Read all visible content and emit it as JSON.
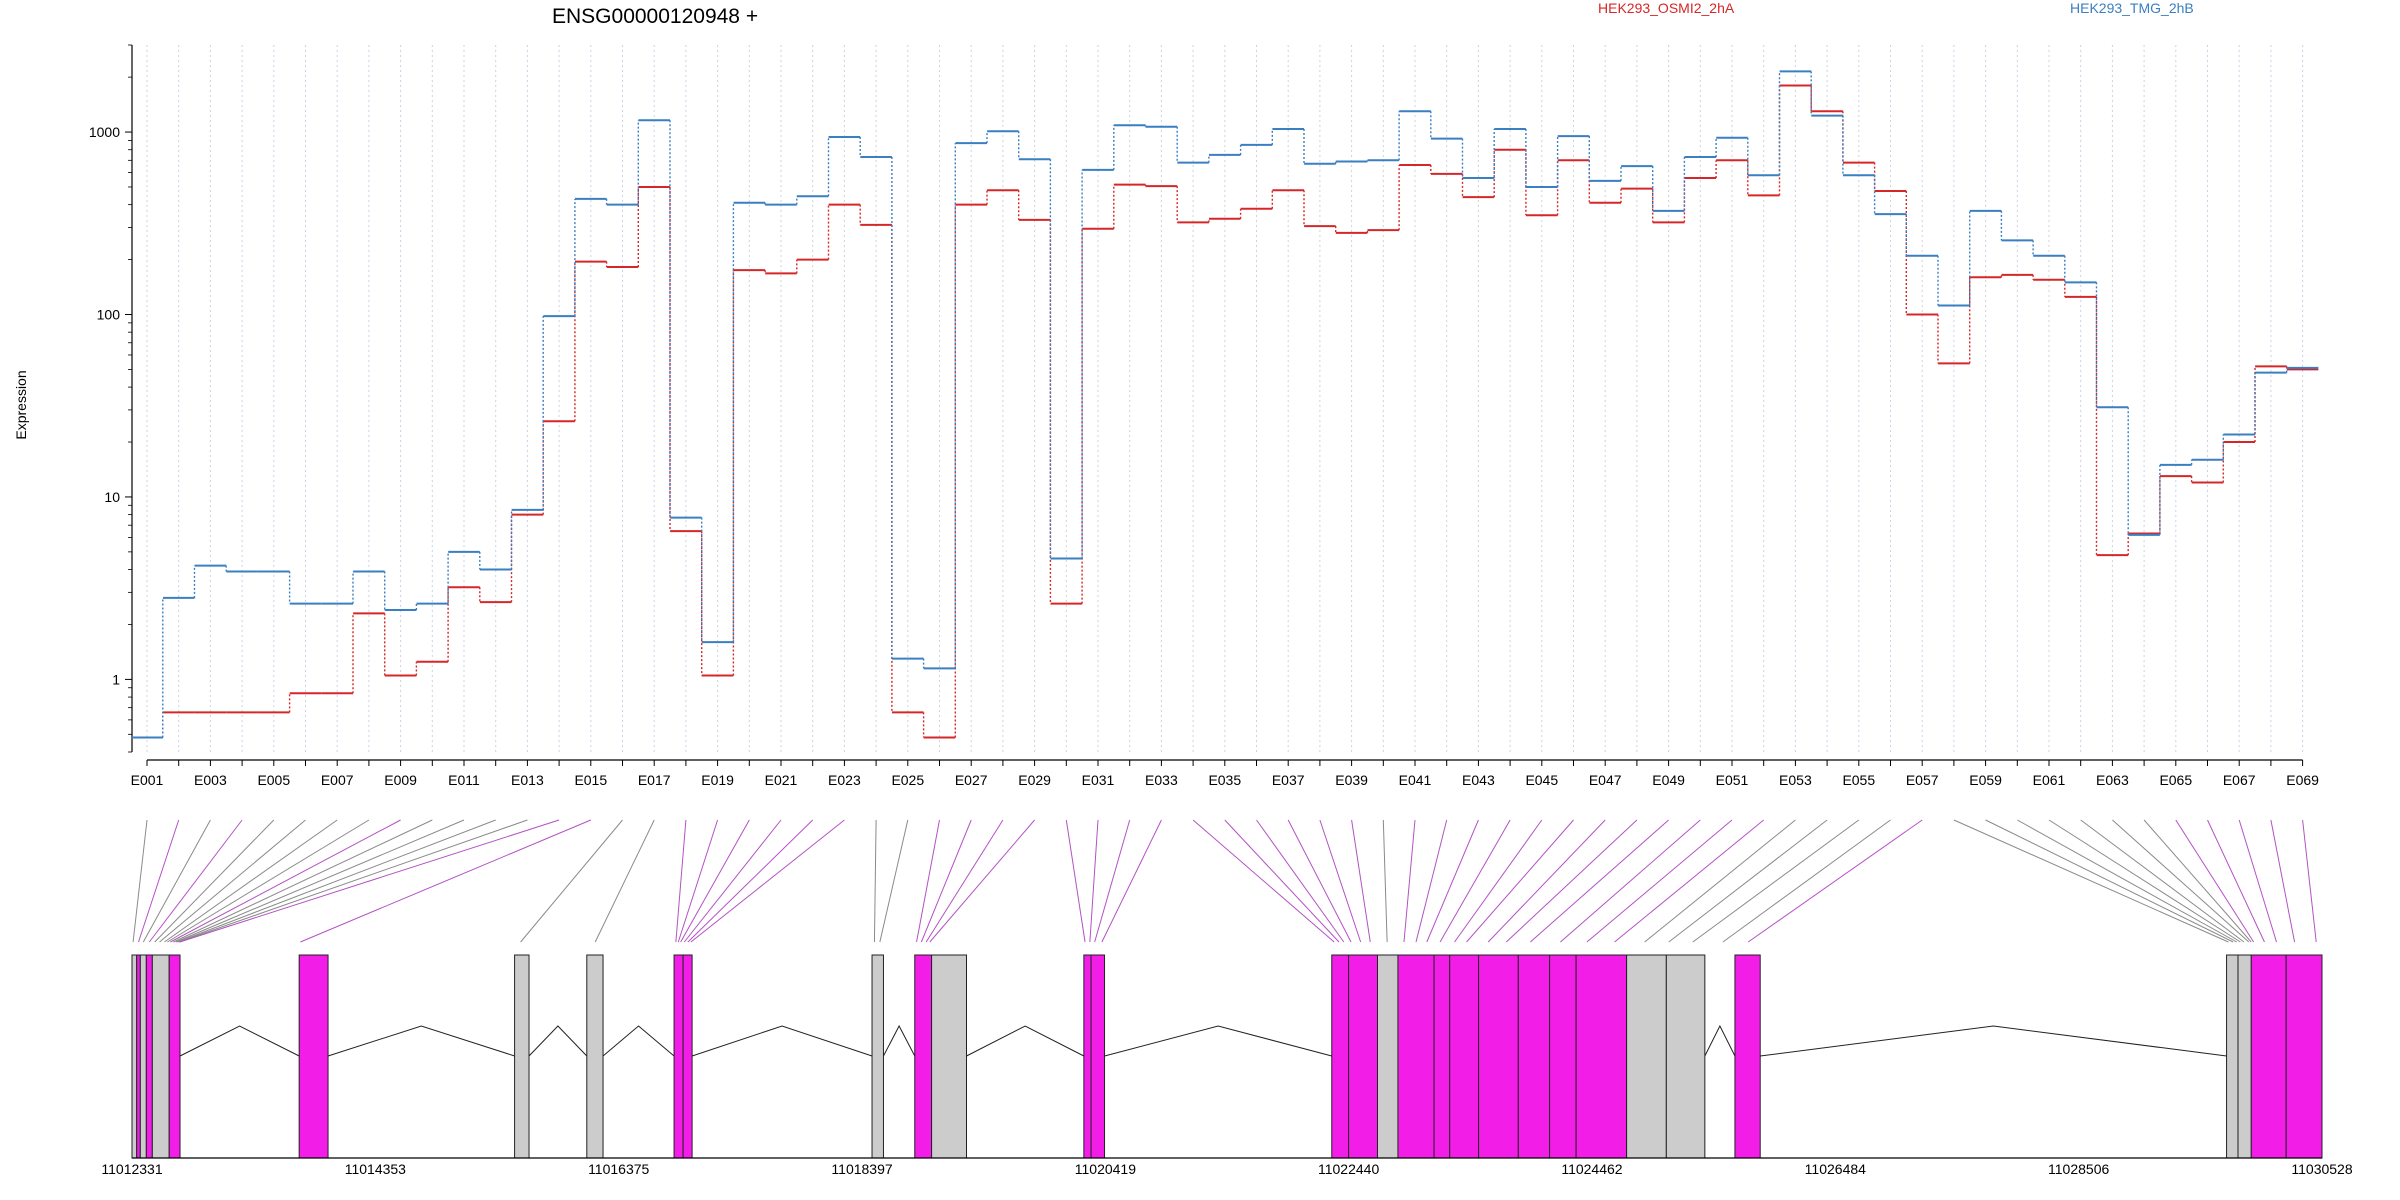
{
  "chart_data": {
    "type": "line",
    "title": "ENSG00000120948 +",
    "ylabel": "Expression",
    "y_scale": "log",
    "ylim": [
      0.4,
      3000
    ],
    "y_ticks": [
      1,
      10,
      100,
      1000
    ],
    "y_tick_labels": [
      "1",
      "10",
      "100",
      "1000"
    ],
    "grid": "vertical dotted lines at each exon",
    "legend_placement": "top",
    "categories": [
      "E001",
      "E002",
      "E003",
      "E004",
      "E005",
      "E006",
      "E007",
      "E008",
      "E009",
      "E010",
      "E011",
      "E012",
      "E013",
      "E014",
      "E015",
      "E016",
      "E017",
      "E018",
      "E019",
      "E020",
      "E021",
      "E022",
      "E023",
      "E024",
      "E025",
      "E026",
      "E027",
      "E028",
      "E029",
      "E030",
      "E031",
      "E032",
      "E033",
      "E034",
      "E035",
      "E036",
      "E037",
      "E038",
      "E039",
      "E040",
      "E041",
      "E042",
      "E043",
      "E044",
      "E045",
      "E046",
      "E047",
      "E048",
      "E049",
      "E050",
      "E051",
      "E052",
      "E053",
      "E054",
      "E055",
      "E056",
      "E057",
      "E058",
      "E059",
      "E060",
      "E061",
      "E062",
      "E063",
      "E064",
      "E065",
      "E066",
      "E067",
      "E068",
      "E069"
    ],
    "x_tick_labels": [
      "E001",
      "E003",
      "E005",
      "E007",
      "E009",
      "E011",
      "E013",
      "E015",
      "E017",
      "E019",
      "E021",
      "E023",
      "E025",
      "E027",
      "E029",
      "E031",
      "E033",
      "E035",
      "E037",
      "E039",
      "E041",
      "E043",
      "E045",
      "E047",
      "E049",
      "E051",
      "E053",
      "E055",
      "E057",
      "E059",
      "E061",
      "E063",
      "E065",
      "E067",
      "E069"
    ],
    "series": [
      {
        "name": "HEK293_OSMI2_2hA",
        "color": "#d62728",
        "values": [
          0.48,
          0.66,
          0.66,
          0.66,
          0.66,
          0.84,
          0.84,
          2.3,
          1.05,
          1.25,
          3.2,
          2.65,
          8.0,
          26,
          195,
          182,
          500,
          6.5,
          1.05,
          175,
          168,
          200,
          400,
          310,
          0.66,
          0.48,
          400,
          480,
          330,
          2.6,
          295,
          515,
          505,
          320,
          335,
          380,
          480,
          305,
          280,
          290,
          660,
          590,
          440,
          800,
          350,
          700,
          410,
          490,
          320,
          560,
          700,
          450,
          1800,
          1300,
          680,
          475,
          100,
          54,
          160,
          165,
          155,
          125,
          4.8,
          6.3,
          13,
          12,
          20,
          52,
          50
        ]
      },
      {
        "name": "HEK293_TMG_2hB",
        "color": "#3a7fc1",
        "values": [
          0.48,
          2.8,
          4.2,
          3.9,
          3.9,
          2.6,
          2.6,
          3.9,
          2.4,
          2.6,
          5.0,
          4.0,
          8.5,
          98,
          430,
          400,
          1160,
          7.7,
          1.6,
          410,
          400,
          445,
          940,
          730,
          1.3,
          1.15,
          870,
          1010,
          710,
          4.6,
          620,
          1090,
          1070,
          680,
          750,
          850,
          1040,
          670,
          690,
          700,
          1300,
          920,
          560,
          1040,
          500,
          950,
          540,
          650,
          370,
          730,
          930,
          580,
          2150,
          1230,
          580,
          355,
          210,
          112,
          370,
          255,
          210,
          150,
          31,
          6.2,
          15,
          16,
          22,
          48,
          51
        ]
      }
    ],
    "gene_model": {
      "coordinate_ticks": [
        "11012331",
        "11014353",
        "11016375",
        "11018397",
        "11020419",
        "11022440",
        "11024462",
        "11026484",
        "11028506",
        "11030528"
      ],
      "coord_range": [
        11012331,
        11030528
      ],
      "colors": {
        "highlighted": "#f21ee8",
        "normal": "#cccccc",
        "outline": "#222222"
      },
      "blocks": [
        {
          "start": 11012331,
          "end": 11012370,
          "hl": false
        },
        {
          "start": 11012370,
          "end": 11012400,
          "hl": true
        },
        {
          "start": 11012400,
          "end": 11012450,
          "hl": false
        },
        {
          "start": 11012450,
          "end": 11012500,
          "hl": true
        },
        {
          "start": 11012500,
          "end": 11012640,
          "hl": false
        },
        {
          "start": 11012640,
          "end": 11012730,
          "hl": true
        },
        {
          "start": 11013720,
          "end": 11013960,
          "hl": true
        },
        {
          "start": 11015510,
          "end": 11015630,
          "hl": false
        },
        {
          "start": 11016110,
          "end": 11016245,
          "hl": false
        },
        {
          "start": 11016835,
          "end": 11016910,
          "hl": true
        },
        {
          "start": 11016910,
          "end": 11016985,
          "hl": true
        },
        {
          "start": 11018480,
          "end": 11018575,
          "hl": false
        },
        {
          "start": 11018835,
          "end": 11018975,
          "hl": true
        },
        {
          "start": 11018975,
          "end": 11019265,
          "hl": false
        },
        {
          "start": 11020240,
          "end": 11020300,
          "hl": true
        },
        {
          "start": 11020300,
          "end": 11020412,
          "hl": true
        },
        {
          "start": 11022300,
          "end": 11022440,
          "hl": true
        },
        {
          "start": 11022440,
          "end": 11022680,
          "hl": true
        },
        {
          "start": 11022680,
          "end": 11022850,
          "hl": false
        },
        {
          "start": 11022850,
          "end": 11023150,
          "hl": true
        },
        {
          "start": 11023150,
          "end": 11023280,
          "hl": true
        },
        {
          "start": 11023280,
          "end": 11023520,
          "hl": true
        },
        {
          "start": 11023520,
          "end": 11023850,
          "hl": true
        },
        {
          "start": 11023850,
          "end": 11024110,
          "hl": true
        },
        {
          "start": 11024110,
          "end": 11024330,
          "hl": true
        },
        {
          "start": 11024330,
          "end": 11024750,
          "hl": true
        },
        {
          "start": 11024750,
          "end": 11025080,
          "hl": false
        },
        {
          "start": 11025080,
          "end": 11025400,
          "hl": false
        },
        {
          "start": 11025650,
          "end": 11025860,
          "hl": true
        },
        {
          "start": 11029735,
          "end": 11029830,
          "hl": false
        },
        {
          "start": 11029830,
          "end": 11029940,
          "hl": false
        },
        {
          "start": 11029940,
          "end": 11030230,
          "hl": true
        },
        {
          "start": 11030230,
          "end": 11030528,
          "hl": true
        }
      ],
      "exon_links": [
        {
          "exon": 1,
          "pos": 11012340,
          "hl": false
        },
        {
          "exon": 2,
          "pos": 11012385,
          "hl": true
        },
        {
          "exon": 3,
          "pos": 11012425,
          "hl": false
        },
        {
          "exon": 4,
          "pos": 11012475,
          "hl": true
        },
        {
          "exon": 5,
          "pos": 11012520,
          "hl": false
        },
        {
          "exon": 6,
          "pos": 11012560,
          "hl": false
        },
        {
          "exon": 7,
          "pos": 11012600,
          "hl": false
        },
        {
          "exon": 8,
          "pos": 11012625,
          "hl": false
        },
        {
          "exon": 9,
          "pos": 11012650,
          "hl": true
        },
        {
          "exon": 10,
          "pos": 11012675,
          "hl": false
        },
        {
          "exon": 11,
          "pos": 11012695,
          "hl": false
        },
        {
          "exon": 12,
          "pos": 11012710,
          "hl": false
        },
        {
          "exon": 13,
          "pos": 11012720,
          "hl": false
        },
        {
          "exon": 14,
          "pos": 11012728,
          "hl": true
        },
        {
          "exon": 15,
          "pos": 11013730,
          "hl": true
        },
        {
          "exon": 16,
          "pos": 11015560,
          "hl": false
        },
        {
          "exon": 17,
          "pos": 11016180,
          "hl": false
        },
        {
          "exon": 18,
          "pos": 11016850,
          "hl": true
        },
        {
          "exon": 19,
          "pos": 11016870,
          "hl": true
        },
        {
          "exon": 20,
          "pos": 11016890,
          "hl": true
        },
        {
          "exon": 21,
          "pos": 11016920,
          "hl": true
        },
        {
          "exon": 22,
          "pos": 11016950,
          "hl": true
        },
        {
          "exon": 23,
          "pos": 11016975,
          "hl": true
        },
        {
          "exon": 24,
          "pos": 11018500,
          "hl": false
        },
        {
          "exon": 25,
          "pos": 11018545,
          "hl": false
        },
        {
          "exon": 26,
          "pos": 11018850,
          "hl": true
        },
        {
          "exon": 27,
          "pos": 11018890,
          "hl": true
        },
        {
          "exon": 28,
          "pos": 11018930,
          "hl": true
        },
        {
          "exon": 29,
          "pos": 11018960,
          "hl": true
        },
        {
          "exon": 30,
          "pos": 11020250,
          "hl": true
        },
        {
          "exon": 31,
          "pos": 11020290,
          "hl": true
        },
        {
          "exon": 32,
          "pos": 11020330,
          "hl": true
        },
        {
          "exon": 33,
          "pos": 11020390,
          "hl": true
        },
        {
          "exon": 34,
          "pos": 11022320,
          "hl": true
        },
        {
          "exon": 35,
          "pos": 11022360,
          "hl": true
        },
        {
          "exon": 36,
          "pos": 11022400,
          "hl": true
        },
        {
          "exon": 37,
          "pos": 11022460,
          "hl": true
        },
        {
          "exon": 38,
          "pos": 11022540,
          "hl": true
        },
        {
          "exon": 39,
          "pos": 11022620,
          "hl": true
        },
        {
          "exon": 40,
          "pos": 11022760,
          "hl": false
        },
        {
          "exon": 41,
          "pos": 11022900,
          "hl": true
        },
        {
          "exon": 42,
          "pos": 11023000,
          "hl": true
        },
        {
          "exon": 43,
          "pos": 11023090,
          "hl": true
        },
        {
          "exon": 44,
          "pos": 11023200,
          "hl": true
        },
        {
          "exon": 45,
          "pos": 11023320,
          "hl": true
        },
        {
          "exon": 46,
          "pos": 11023420,
          "hl": true
        },
        {
          "exon": 47,
          "pos": 11023600,
          "hl": true
        },
        {
          "exon": 48,
          "pos": 11023750,
          "hl": true
        },
        {
          "exon": 49,
          "pos": 11023950,
          "hl": true
        },
        {
          "exon": 50,
          "pos": 11024200,
          "hl": true
        },
        {
          "exon": 51,
          "pos": 11024420,
          "hl": true
        },
        {
          "exon": 52,
          "pos": 11024650,
          "hl": true
        },
        {
          "exon": 53,
          "pos": 11024900,
          "hl": false
        },
        {
          "exon": 54,
          "pos": 11025100,
          "hl": false
        },
        {
          "exon": 55,
          "pos": 11025300,
          "hl": false
        },
        {
          "exon": 56,
          "pos": 11025550,
          "hl": false
        },
        {
          "exon": 57,
          "pos": 11025760,
          "hl": true
        },
        {
          "exon": 58,
          "pos": 11029750,
          "hl": false
        },
        {
          "exon": 59,
          "pos": 11029790,
          "hl": false
        },
        {
          "exon": 60,
          "pos": 11029820,
          "hl": false
        },
        {
          "exon": 61,
          "pos": 11029850,
          "hl": false
        },
        {
          "exon": 62,
          "pos": 11029880,
          "hl": false
        },
        {
          "exon": 63,
          "pos": 11029920,
          "hl": false
        },
        {
          "exon": 64,
          "pos": 11029940,
          "hl": false
        },
        {
          "exon": 65,
          "pos": 11029960,
          "hl": true
        },
        {
          "exon": 66,
          "pos": 11030050,
          "hl": true
        },
        {
          "exon": 67,
          "pos": 11030150,
          "hl": true
        },
        {
          "exon": 68,
          "pos": 11030300,
          "hl": true
        },
        {
          "exon": 69,
          "pos": 11030480,
          "hl": true
        }
      ]
    }
  }
}
